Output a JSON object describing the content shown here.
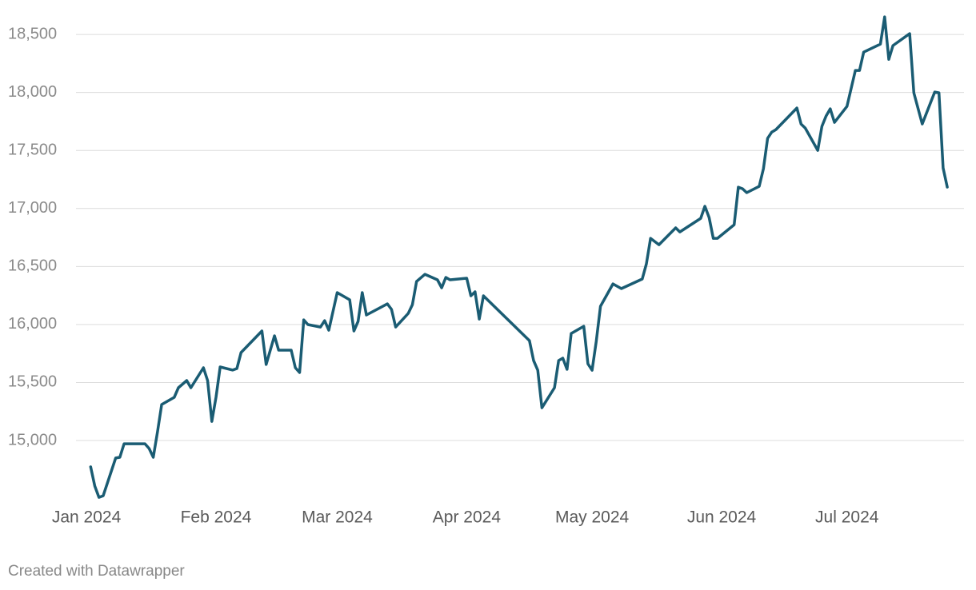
{
  "chart_data": {
    "type": "line",
    "x": [
      1,
      2,
      3,
      4,
      7,
      8,
      9,
      14,
      15,
      16,
      17,
      18,
      21,
      22,
      24,
      25,
      28,
      29,
      30,
      31,
      32,
      35,
      36,
      37,
      42,
      43,
      45,
      46,
      49,
      50,
      51,
      52,
      53,
      56,
      57,
      58,
      60,
      63,
      64,
      65,
      66,
      67,
      72,
      73,
      74,
      77,
      78,
      79,
      81,
      84,
      85,
      86,
      87,
      91,
      92,
      93,
      94,
      95,
      106,
      107,
      108,
      109,
      112,
      113,
      114,
      115,
      116,
      119,
      120,
      121,
      122,
      123,
      126,
      128,
      133,
      134,
      135,
      137,
      141,
      142,
      147,
      148,
      149,
      150,
      151,
      155,
      156,
      157,
      158,
      161,
      162,
      163,
      164,
      165,
      170,
      171,
      172,
      175,
      176,
      177,
      178,
      179,
      182,
      184,
      185,
      186,
      190,
      191,
      192,
      193,
      197,
      198,
      200,
      203,
      204,
      205,
      206
    ],
    "series": [
      {
        "color": "#1a5c73",
        "values": [
          14773,
          14607,
          14510,
          14524,
          14849,
          14855,
          14972,
          14972,
          14931,
          14855,
          15076,
          15310,
          15372,
          15455,
          15517,
          15455,
          15627,
          15517,
          15165,
          15372,
          15634,
          15607,
          15620,
          15758,
          15944,
          15655,
          15903,
          15779,
          15779,
          15627,
          15586,
          16040,
          15999,
          15978,
          16033,
          15951,
          16275,
          16213,
          15944,
          16027,
          16275,
          16082,
          16178,
          16130,
          15978,
          16096,
          16171,
          16371,
          16433,
          16385,
          16316,
          16406,
          16385,
          16399,
          16247,
          16282,
          16047,
          16247,
          15861,
          15689,
          15606,
          15282,
          15455,
          15689,
          15710,
          15613,
          15923,
          15985,
          15661,
          15606,
          15854,
          16157,
          16350,
          16309,
          16392,
          16523,
          16743,
          16688,
          16833,
          16798,
          16915,
          17019,
          16922,
          16743,
          16743,
          16860,
          17184,
          17170,
          17136,
          17191,
          17343,
          17604,
          17659,
          17680,
          17866,
          17728,
          17694,
          17501,
          17708,
          17797,
          17859,
          17742,
          17880,
          18190,
          18190,
          18348,
          18417,
          18652,
          18286,
          18404,
          18507,
          17997,
          17728,
          18004,
          17997,
          17349,
          17184
        ]
      }
    ],
    "xlim": [
      -2.5,
      210
    ],
    "xticks": [
      {
        "value": 0,
        "label": "Jan 2024"
      },
      {
        "value": 31,
        "label": "Feb 2024"
      },
      {
        "value": 60,
        "label": "Mar 2024"
      },
      {
        "value": 91,
        "label": "Apr 2024"
      },
      {
        "value": 121,
        "label": "May 2024"
      },
      {
        "value": 152,
        "label": "Jun 2024"
      },
      {
        "value": 182,
        "label": "Jul 2024"
      }
    ],
    "ylim": [
      14490,
      18680
    ],
    "yticks": [
      {
        "value": 15000,
        "label": "15,000"
      },
      {
        "value": 15500,
        "label": "15,500"
      },
      {
        "value": 16000,
        "label": "16,000"
      },
      {
        "value": 16500,
        "label": "16,500"
      },
      {
        "value": 17000,
        "label": "17,000"
      },
      {
        "value": 17500,
        "label": "17,500"
      },
      {
        "value": 18000,
        "label": "18,000"
      },
      {
        "value": 18500,
        "label": "18,500"
      }
    ],
    "grid": true,
    "source": "Created with Datawrapper"
  }
}
